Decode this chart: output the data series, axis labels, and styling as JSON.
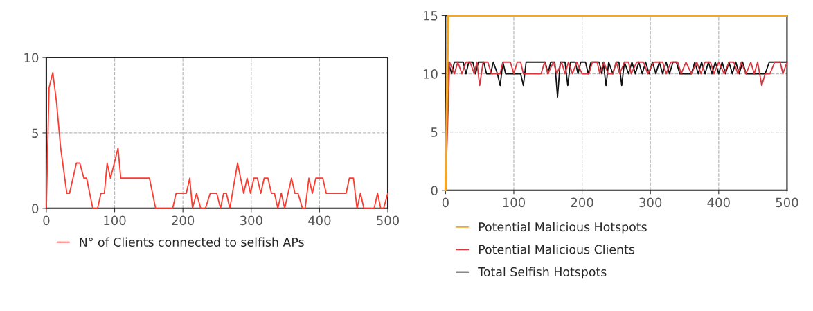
{
  "chart_data": [
    {
      "type": "line",
      "xlim": [
        0,
        500
      ],
      "ylim": [
        0,
        10
      ],
      "xticks": [
        0,
        100,
        200,
        300,
        400,
        500
      ],
      "yticks": [
        0,
        5,
        10
      ],
      "grid": true,
      "legend": "bottom",
      "series": [
        {
          "name": "N° of Clients connected to selfish APs",
          "color": "#ff3b30",
          "x": [
            0,
            4,
            9.5,
            15,
            21,
            27,
            30,
            34,
            44,
            49,
            55,
            59,
            68,
            75,
            80,
            85,
            89,
            94,
            105,
            109,
            151,
            160,
            185,
            190,
            205,
            210,
            214,
            220,
            226,
            233,
            240,
            249.5,
            255,
            259.6,
            263.6,
            268.7,
            280,
            289,
            294,
            299,
            304,
            309,
            314,
            319,
            324.5,
            329.6,
            334,
            339,
            344,
            349,
            359,
            364,
            368.5,
            375,
            379,
            384.5,
            389.5,
            394.6,
            404.8,
            409.8,
            439,
            443.7,
            449.7,
            455,
            460,
            465,
            480,
            485,
            489.6,
            494,
            500
          ],
          "values": [
            0,
            8,
            9,
            7,
            4,
            2,
            1,
            1,
            3,
            3,
            2,
            2,
            0,
            0,
            1,
            1,
            3,
            2,
            4,
            2,
            2,
            0,
            0,
            1,
            1,
            2,
            0,
            1,
            0,
            0,
            1,
            1,
            0,
            1,
            1,
            0,
            3,
            1,
            2,
            1,
            2,
            2,
            1,
            2,
            2,
            1,
            1,
            0,
            1,
            0,
            2,
            1,
            1,
            0,
            0,
            2,
            1,
            2,
            2,
            1,
            1,
            2,
            2,
            0,
            1,
            0,
            0,
            1,
            0,
            0,
            1
          ]
        }
      ]
    },
    {
      "type": "line",
      "xlim": [
        0,
        500
      ],
      "ylim": [
        0,
        15
      ],
      "xticks": [
        0,
        100,
        200,
        300,
        400,
        500
      ],
      "yticks": [
        0,
        5,
        10,
        15
      ],
      "grid": true,
      "legend": "bottom",
      "series": [
        {
          "name": "Potential Malicious Hotspots",
          "color": "#f5a623",
          "x": [
            0,
            4,
            500
          ],
          "values": [
            0,
            15,
            15
          ]
        },
        {
          "name": "Potential Malicious Clients",
          "color": "#d9363e",
          "x": [
            0,
            6,
            13,
            18,
            24,
            30,
            36,
            42,
            46,
            50,
            55,
            62,
            67,
            80,
            84,
            95,
            100,
            105,
            110,
            114,
            140,
            145,
            150,
            158,
            163,
            170,
            175,
            180,
            186,
            192,
            200,
            210,
            215,
            222,
            226,
            232,
            238,
            245,
            250,
            255,
            262,
            268,
            272,
            280,
            290,
            296,
            305,
            318,
            323,
            330,
            340,
            345,
            352,
            360,
            368,
            374,
            380,
            388,
            393,
            400,
            408,
            415,
            422,
            428,
            433,
            440,
            447,
            452,
            457,
            463,
            468,
            475,
            482,
            490,
            494,
            500
          ],
          "values": [
            0,
            11,
            10,
            11,
            10,
            11,
            11,
            10,
            11,
            9,
            11,
            11,
            10,
            10,
            11,
            11,
            10,
            11,
            11,
            10,
            10,
            11,
            10,
            11,
            10,
            11,
            10,
            11,
            10,
            11,
            10,
            10,
            11,
            11,
            10,
            11,
            10,
            10,
            11,
            10,
            11,
            11,
            10,
            11,
            11,
            10,
            11,
            11,
            10,
            11,
            11,
            10,
            11,
            10,
            11,
            10,
            11,
            11,
            10,
            11,
            10,
            11,
            11,
            10,
            11,
            10,
            11,
            10,
            11,
            9,
            10,
            10,
            11,
            11,
            10,
            11
          ]
        },
        {
          "name": "Total Selfish Hotspots",
          "color": "#111111",
          "x": [
            0,
            4,
            9,
            13,
            26,
            30,
            34,
            40,
            44,
            48,
            56,
            60,
            66,
            70,
            76,
            80,
            84,
            88,
            110,
            114,
            118,
            146,
            150,
            154,
            160,
            164,
            168,
            175,
            179,
            183,
            190,
            194,
            198,
            205,
            209,
            213,
            225,
            229,
            231,
            235,
            239,
            245,
            250,
            254,
            258,
            262,
            268,
            273,
            278,
            283,
            288,
            293,
            298,
            303,
            308,
            313,
            318,
            323,
            328,
            333,
            338,
            343,
            360,
            365,
            370,
            375,
            380,
            385,
            390,
            395,
            400,
            405,
            410,
            415,
            420,
            425,
            430,
            435,
            440,
            446,
            468,
            474,
            500
          ],
          "values": [
            0,
            11,
            10,
            11,
            11,
            10,
            11,
            11,
            10,
            11,
            11,
            10,
            10,
            11,
            10,
            9,
            11,
            10,
            10,
            9,
            11,
            11,
            10,
            11,
            11,
            8,
            11,
            11,
            9,
            11,
            11,
            10,
            11,
            11,
            10,
            11,
            11,
            10,
            11,
            9,
            11,
            10,
            11,
            11,
            9,
            11,
            10,
            11,
            10,
            11,
            10,
            11,
            10,
            11,
            10,
            11,
            10,
            11,
            10,
            11,
            11,
            10,
            10,
            11,
            10,
            11,
            10,
            11,
            10,
            11,
            10,
            11,
            10,
            11,
            10,
            11,
            10,
            11,
            10,
            10,
            10,
            11,
            11
          ]
        }
      ]
    }
  ]
}
